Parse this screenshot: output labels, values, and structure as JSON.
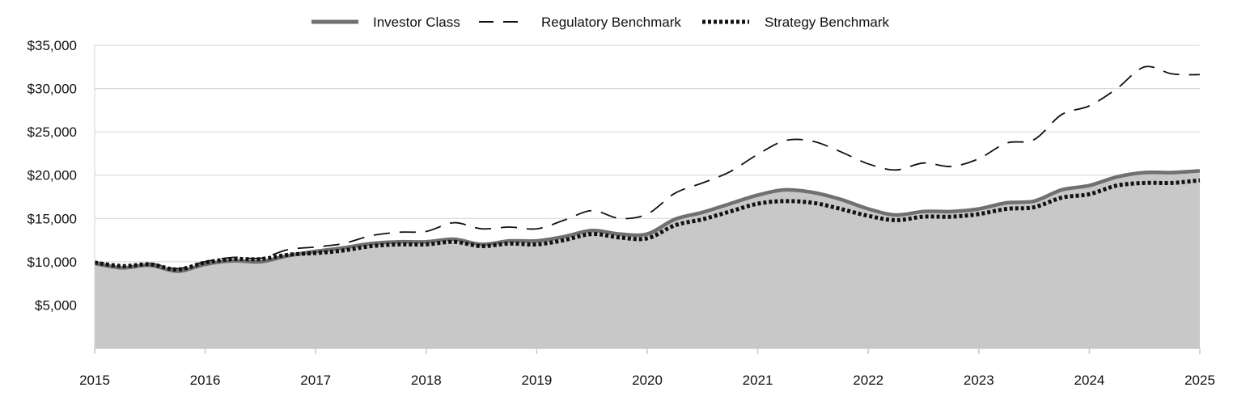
{
  "chart_data": {
    "type": "area",
    "title": "",
    "xlabel": "",
    "ylabel": "",
    "x_ticks": [
      "2015",
      "2016",
      "2017",
      "2018",
      "2019",
      "2020",
      "2021",
      "2022",
      "2023",
      "2024",
      "2025"
    ],
    "y_ticks": [
      "$5,000",
      "$10,000",
      "$15,000",
      "$20,000",
      "$25,000",
      "$30,000",
      "$35,000"
    ],
    "xlim": [
      2015,
      2025
    ],
    "ylim": [
      0,
      35000
    ],
    "legend_position": "top-center",
    "x": [
      2015.0,
      2015.25,
      2015.5,
      2015.75,
      2016.0,
      2016.25,
      2016.5,
      2016.75,
      2017.0,
      2017.25,
      2017.5,
      2017.75,
      2018.0,
      2018.25,
      2018.5,
      2018.75,
      2019.0,
      2019.25,
      2019.5,
      2019.75,
      2020.0,
      2020.25,
      2020.5,
      2020.75,
      2021.0,
      2021.25,
      2021.5,
      2021.75,
      2022.0,
      2022.25,
      2022.5,
      2022.75,
      2023.0,
      2023.25,
      2023.5,
      2023.75,
      2024.0,
      2024.25,
      2024.5,
      2024.75,
      2025.0
    ],
    "series": [
      {
        "name": "Investor Class",
        "style": "solid-area",
        "color": "#707070",
        "values": [
          9800,
          9300,
          9600,
          8900,
          9700,
          10100,
          10000,
          10700,
          11200,
          11600,
          12100,
          12300,
          12300,
          12600,
          12000,
          12400,
          12400,
          12900,
          13600,
          13200,
          13200,
          14900,
          15700,
          16700,
          17700,
          18300,
          18000,
          17200,
          16100,
          15400,
          15800,
          15800,
          16100,
          16800,
          17000,
          18300,
          18800,
          19800,
          20300,
          20300,
          20500
        ]
      },
      {
        "name": "Regulatory Benchmark",
        "style": "dashed",
        "color": "#111111",
        "values": [
          10000,
          9400,
          9800,
          9200,
          10000,
          10500,
          10400,
          11400,
          11700,
          12100,
          13000,
          13400,
          13500,
          14500,
          13800,
          14000,
          13800,
          14800,
          15900,
          15000,
          15500,
          17900,
          19100,
          20400,
          22400,
          24000,
          23900,
          22700,
          21300,
          20600,
          21400,
          21000,
          21900,
          23700,
          24100,
          27000,
          28000,
          30000,
          32500,
          31700,
          31600
        ]
      },
      {
        "name": "Strategy Benchmark",
        "style": "dotted",
        "color": "#111111",
        "values": [
          9900,
          9500,
          9700,
          9100,
          9900,
          10300,
          10300,
          10800,
          11000,
          11300,
          11800,
          12000,
          12000,
          12300,
          11800,
          12100,
          12000,
          12500,
          13200,
          12800,
          12700,
          14200,
          14900,
          15800,
          16700,
          17000,
          16800,
          16100,
          15300,
          14800,
          15200,
          15200,
          15500,
          16100,
          16300,
          17400,
          17800,
          18800,
          19100,
          19100,
          19400
        ]
      }
    ],
    "colors": {
      "area_fill": "#c8c8c8",
      "grid": "#d4d4d4",
      "axis": "#c8c8c8"
    }
  }
}
